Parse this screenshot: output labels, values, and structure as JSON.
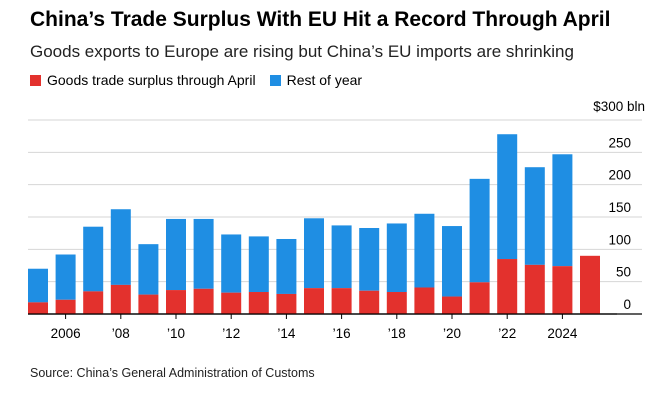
{
  "colors": {
    "surplus": "#e3312d",
    "rest": "#1f8ee3"
  },
  "chart_data": {
    "type": "bar",
    "stacked": true,
    "title": "China’s Trade Surplus With EU Hit a Record Through April",
    "subtitle": "Goods exports to Europe are rising but China’s EU imports are shrinking",
    "source": "Source: China’s General Administration of Customs",
    "unit_label": "$300 bln",
    "ylim": [
      0,
      300
    ],
    "y_ticks": [
      250,
      200,
      150,
      100,
      50,
      0
    ],
    "legend": [
      "Goods trade surplus through April",
      "Rest of year"
    ],
    "x_tick_labels": [
      "2006",
      "’08",
      "’10",
      "’12",
      "’14",
      "’16",
      "’18",
      "’20",
      "’22",
      "2024"
    ],
    "x": [
      2005,
      2006,
      2007,
      2008,
      2009,
      2010,
      2011,
      2012,
      2013,
      2014,
      2015,
      2016,
      2017,
      2018,
      2019,
      2020,
      2021,
      2022,
      2023,
      2024,
      2025
    ],
    "series": [
      {
        "name": "Goods trade surplus through April",
        "values": [
          18,
          22,
          35,
          45,
          30,
          37,
          39,
          33,
          34,
          31,
          40,
          40,
          36,
          34,
          41,
          27,
          49,
          85,
          76,
          74,
          90
        ]
      },
      {
        "name": "Rest of year",
        "values": [
          52,
          70,
          100,
          117,
          78,
          110,
          108,
          90,
          86,
          85,
          108,
          97,
          97,
          106,
          114,
          109,
          160,
          193,
          151,
          173,
          0
        ]
      }
    ]
  }
}
